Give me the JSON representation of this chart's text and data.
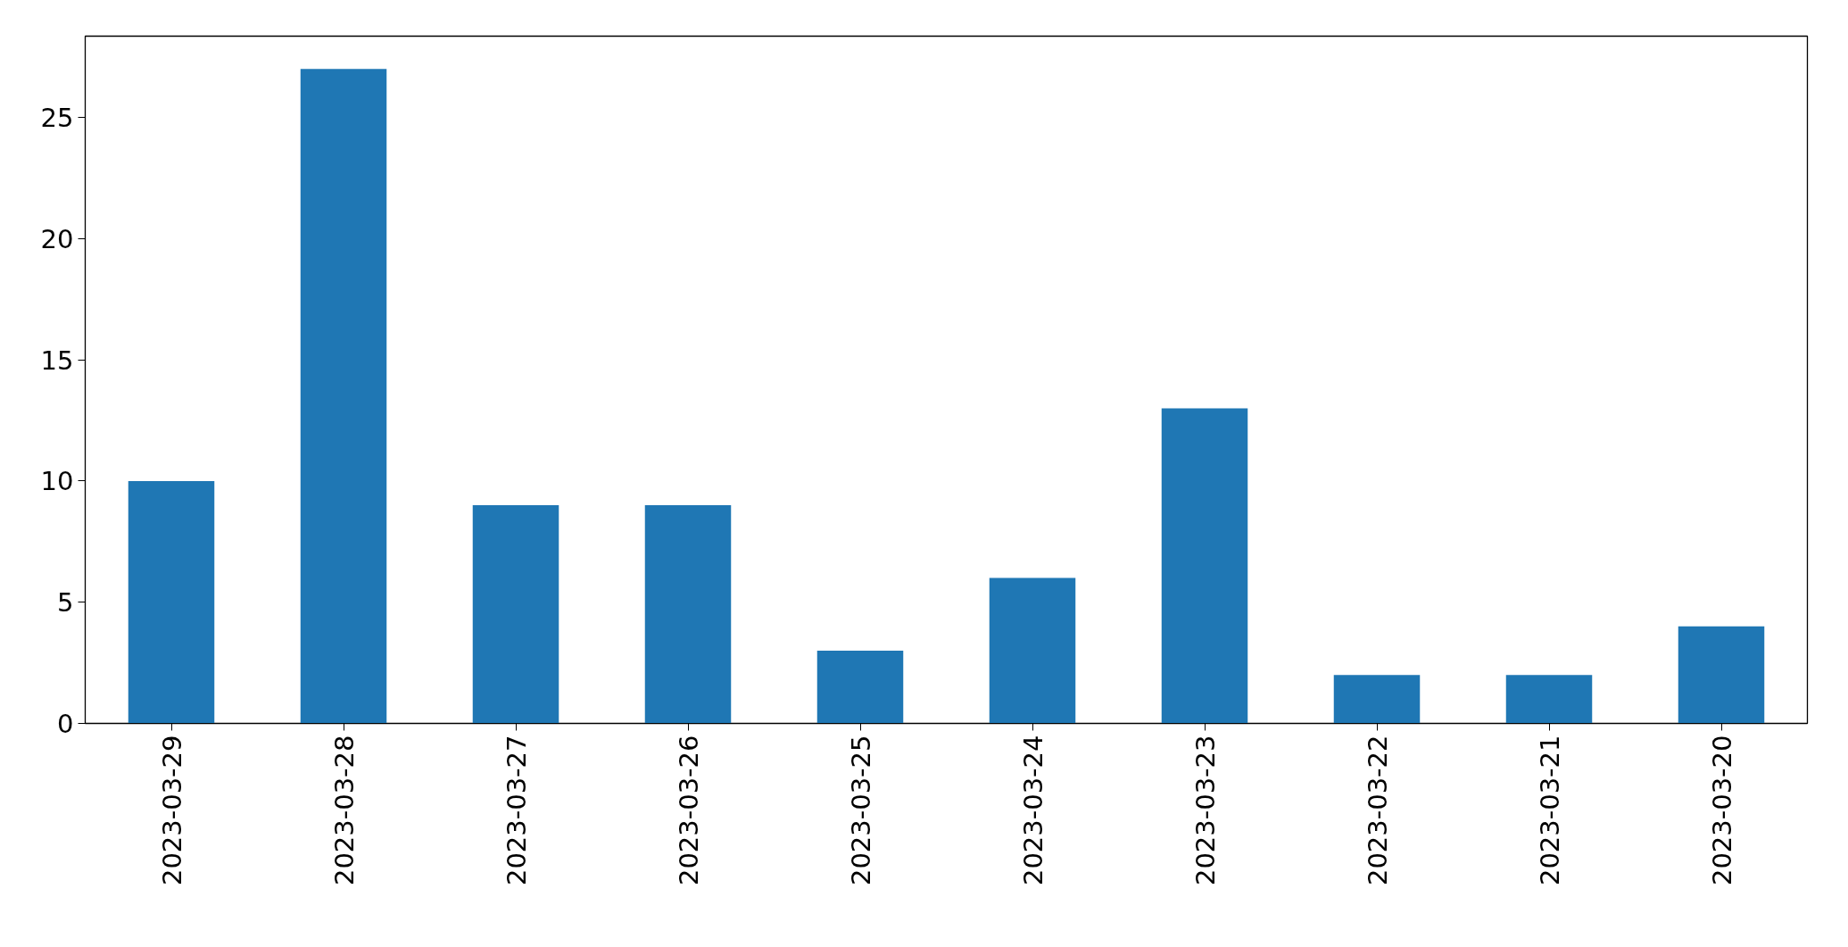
{
  "chart_data": {
    "type": "bar",
    "categories": [
      "2023-03-29",
      "2023-03-28",
      "2023-03-27",
      "2023-03-26",
      "2023-03-25",
      "2023-03-24",
      "2023-03-23",
      "2023-03-22",
      "2023-03-21",
      "2023-03-20"
    ],
    "values": [
      10,
      27,
      9,
      9,
      3,
      6,
      13,
      2,
      2,
      4
    ],
    "color": "#1f77b4",
    "ylim": [
      0,
      28.35
    ],
    "yticks": [
      0,
      5,
      10,
      15,
      20,
      25
    ]
  }
}
